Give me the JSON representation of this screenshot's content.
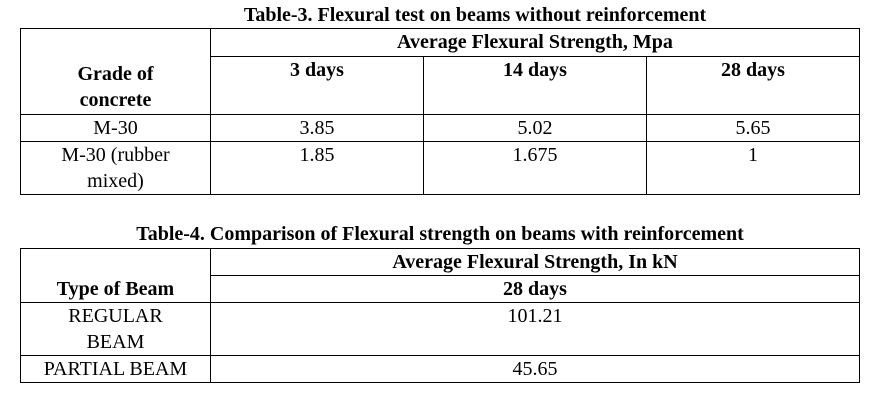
{
  "table3": {
    "caption": "Table-3. Flexural test on beams without reinforcement",
    "group_header": "Average Flexural Strength, Mpa",
    "row_header": "Grade of\nconcrete",
    "columns": [
      "3 days",
      "14 days",
      "28 days"
    ],
    "rows": [
      {
        "grade": "M-30",
        "values": [
          "3.85",
          "5.02",
          "5.65"
        ]
      },
      {
        "grade": "M-30 (rubber\nmixed)",
        "values": [
          "1.85",
          "1.675",
          "1"
        ]
      }
    ]
  },
  "table4": {
    "caption": "Table-4. Comparison of Flexural strength on beams with reinforcement",
    "group_header": "Average Flexural Strength, In kN",
    "row_header": "Type of Beam",
    "columns": [
      "28 days"
    ],
    "rows": [
      {
        "type": "REGULAR\nBEAM",
        "value": "101.21"
      },
      {
        "type": "PARTIAL BEAM",
        "value": "45.65"
      }
    ]
  }
}
